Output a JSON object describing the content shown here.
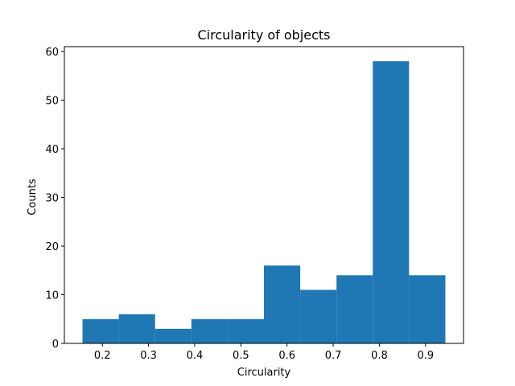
{
  "chart_data": {
    "type": "bar",
    "title": "Circularity of objects",
    "xlabel": "Circularity",
    "ylabel": "Counts",
    "bin_edges": [
      0.157,
      0.2356,
      0.3142,
      0.3928,
      0.4714,
      0.55,
      0.6286,
      0.7072,
      0.7858,
      0.8644,
      0.943
    ],
    "values": [
      5,
      6,
      3,
      5,
      5,
      16,
      11,
      14,
      58,
      14
    ],
    "xlim": [
      0.1177,
      0.9823
    ],
    "ylim": [
      0,
      61
    ],
    "xticks": [
      0.2,
      0.3,
      0.4,
      0.5,
      0.6,
      0.7,
      0.8,
      0.9
    ],
    "xtick_labels": [
      "0.2",
      "0.3",
      "0.4",
      "0.5",
      "0.6",
      "0.7",
      "0.8",
      "0.9"
    ],
    "yticks": [
      0,
      10,
      20,
      30,
      40,
      50,
      60
    ],
    "ytick_labels": [
      "0",
      "10",
      "20",
      "30",
      "40",
      "50",
      "60"
    ],
    "bar_color": "#1f77b4",
    "grid": false,
    "legend": "none"
  }
}
